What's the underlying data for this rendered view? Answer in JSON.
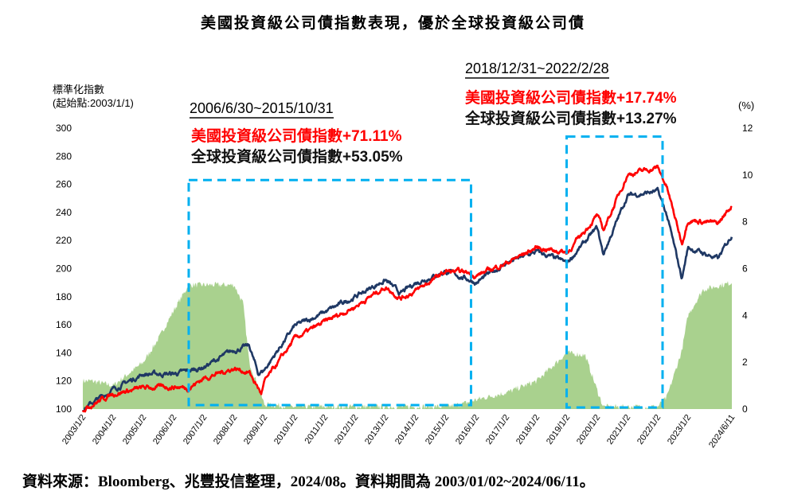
{
  "chart_data": {
    "type": "line",
    "title": "美國投資級公司債指數表現，優於全球投資級公司債",
    "ylabel": "標準化指數",
    "ylabel_sub": "(起始點:2003/1/1)",
    "y2label": "(%)",
    "ylim": [
      100,
      300
    ],
    "y2lim": [
      0,
      12
    ],
    "yticks": [
      "100",
      "120",
      "140",
      "160",
      "180",
      "200",
      "220",
      "240",
      "260",
      "280",
      "300"
    ],
    "y2ticks": [
      "0",
      "2",
      "4",
      "6",
      "8",
      "10",
      "12"
    ],
    "xlim": [
      2003.0,
      2024.45
    ],
    "xticks": [
      {
        "label": "2003/1/2",
        "x": 2003.0
      },
      {
        "label": "2004/1/2",
        "x": 2004.0
      },
      {
        "label": "2005/1/2",
        "x": 2005.0
      },
      {
        "label": "2006/1/2",
        "x": 2006.0
      },
      {
        "label": "2007/1/2",
        "x": 2007.0
      },
      {
        "label": "2008/1/2",
        "x": 2008.0
      },
      {
        "label": "2009/1/2",
        "x": 2009.0
      },
      {
        "label": "2010/1/2",
        "x": 2010.0
      },
      {
        "label": "2011/1/2",
        "x": 2011.0
      },
      {
        "label": "2012/1/2",
        "x": 2012.0
      },
      {
        "label": "2013/1/2",
        "x": 2013.0
      },
      {
        "label": "2014/1/2",
        "x": 2014.0
      },
      {
        "label": "2015/1/2",
        "x": 2015.0
      },
      {
        "label": "2016/1/2",
        "x": 2016.0
      },
      {
        "label": "2017/1/2",
        "x": 2017.0
      },
      {
        "label": "2018/1/2",
        "x": 2018.0
      },
      {
        "label": "2019/1/2",
        "x": 2019.0
      },
      {
        "label": "2020/1/2",
        "x": 2020.0
      },
      {
        "label": "2021/1/2",
        "x": 2021.0
      },
      {
        "label": "2022/1/2",
        "x": 2022.0
      },
      {
        "label": "2023/1/2",
        "x": 2023.0
      },
      {
        "label": "2024/6/11",
        "x": 2024.45
      }
    ],
    "series": [
      {
        "name": "美國投資級公司債指數",
        "axis": "left",
        "color": "#ff0000",
        "x": [
          2003.0,
          2004.0,
          2005.0,
          2006.0,
          2006.5,
          2007.0,
          2008.0,
          2008.5,
          2008.9,
          2009.0,
          2010.0,
          2011.0,
          2012.0,
          2013.0,
          2013.5,
          2014.0,
          2015.0,
          2015.8,
          2016.0,
          2017.0,
          2018.0,
          2018.9,
          2019.0,
          2020.0,
          2020.2,
          2021.0,
          2022.0,
          2022.3,
          2022.8,
          2023.0,
          2024.0,
          2024.45
        ],
        "values": [
          100,
          111,
          115,
          116,
          115,
          122,
          129,
          126,
          111,
          119,
          150,
          162,
          173,
          187,
          179,
          184,
          198,
          197,
          195,
          204,
          215,
          212,
          211,
          238,
          227,
          267,
          272,
          258,
          218,
          235,
          232,
          245
        ]
      },
      {
        "name": "全球投資級公司債指數",
        "axis": "left",
        "color": "#1f3864",
        "x": [
          2003.0,
          2004.0,
          2005.0,
          2006.0,
          2006.5,
          2007.0,
          2008.0,
          2008.5,
          2008.8,
          2009.0,
          2010.0,
          2011.0,
          2012.0,
          2013.0,
          2013.5,
          2014.0,
          2015.0,
          2015.8,
          2016.0,
          2017.0,
          2018.0,
          2019.0,
          2020.0,
          2020.2,
          2021.0,
          2022.0,
          2022.3,
          2022.8,
          2023.0,
          2024.0,
          2024.45
        ],
        "values": [
          100,
          114,
          125,
          125,
          127,
          130,
          142,
          145,
          125,
          128,
          159,
          169,
          180,
          192,
          182,
          190,
          198,
          192,
          190,
          204,
          212,
          204,
          229,
          210,
          252,
          255,
          238,
          193,
          215,
          207,
          224
        ]
      },
      {
        "name": "(%)",
        "type": "area",
        "axis": "right",
        "color": "#a9d18e",
        "x": [
          2003.0,
          2003.3,
          2004.0,
          2005.0,
          2005.5,
          2006.0,
          2006.5,
          2007.0,
          2008.0,
          2008.3,
          2008.5,
          2009.0,
          2010.0,
          2015.0,
          2015.5,
          2016.0,
          2017.0,
          2018.0,
          2018.5,
          2019.0,
          2019.6,
          2020.0,
          2020.2,
          2022.0,
          2022.3,
          2022.8,
          2023.0,
          2023.5,
          2024.45
        ],
        "values": [
          1.2,
          1.2,
          1.0,
          2.0,
          3.0,
          4.2,
          5.3,
          5.3,
          5.3,
          4.5,
          2.0,
          0.2,
          0.1,
          0.1,
          0.2,
          0.4,
          0.7,
          1.2,
          1.8,
          2.4,
          2.3,
          0.8,
          0.1,
          0.1,
          0.5,
          2.5,
          4.0,
          5.1,
          5.4
        ]
      }
    ],
    "annotations": [
      {
        "period": "2006/6/30~2015/10/31",
        "start": 2006.5,
        "end": 2015.83,
        "us": "美國投資級公司債指數+71.11%",
        "global": "全球投資級公司債指數+53.05%"
      },
      {
        "period": "2018/12/31~2022/2/28",
        "start": 2018.99,
        "end": 2022.16,
        "us": "美國投資級公司債指數+17.74%",
        "global": "全球投資級公司債指數+13.27%"
      }
    ],
    "box_color": "#00b0f0"
  },
  "source": "資料來源：Bloomberg、兆豐投信整理，2024/08。資料期間為 2003/01/02~2024/06/11。"
}
